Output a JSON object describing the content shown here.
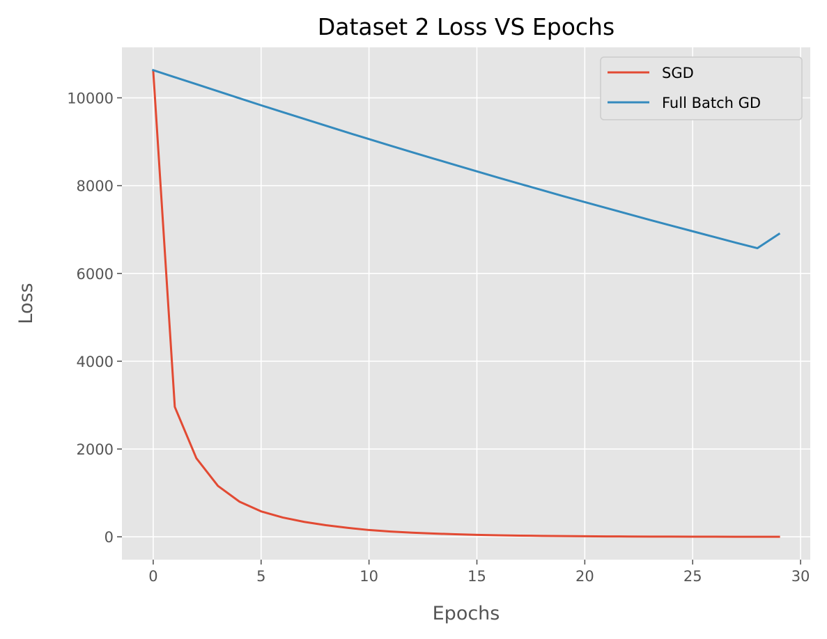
{
  "chart_data": {
    "type": "line",
    "title": "Dataset 2 Loss VS Epochs",
    "xlabel": "Epochs",
    "ylabel": "Loss",
    "xlim": [
      -1.45,
      30.45
    ],
    "ylim": [
      -520,
      11150
    ],
    "xticks": [
      0,
      5,
      10,
      15,
      20,
      25,
      30
    ],
    "yticks": [
      0,
      2000,
      4000,
      6000,
      8000,
      10000
    ],
    "grid": true,
    "legend_position": "top-right",
    "x": [
      0,
      1,
      2,
      3,
      4,
      5,
      6,
      7,
      8,
      9,
      10,
      11,
      12,
      13,
      14,
      15,
      16,
      17,
      18,
      19,
      20,
      21,
      22,
      23,
      24,
      25,
      26,
      27,
      28,
      29
    ],
    "series": [
      {
        "name": "SGD",
        "color": "#E24A33",
        "values": [
          10620,
          2960,
          1790,
          1160,
          800,
          580,
          440,
          340,
          265,
          205,
          155,
          120,
          95,
          75,
          58,
          45,
          35,
          28,
          22,
          17,
          13,
          10,
          8,
          6,
          5,
          4,
          3,
          2,
          2,
          1
        ]
      },
      {
        "name": "Full Batch GD",
        "color": "#348ABD",
        "values": [
          10630,
          10470,
          10310,
          10150,
          9990,
          9830,
          9675,
          9520,
          9365,
          9210,
          9060,
          8910,
          8760,
          8615,
          8470,
          8325,
          8180,
          8040,
          7900,
          7760,
          7625,
          7490,
          7355,
          7220,
          7090,
          6960,
          6830,
          6700,
          6575,
          6900
        ]
      }
    ]
  }
}
